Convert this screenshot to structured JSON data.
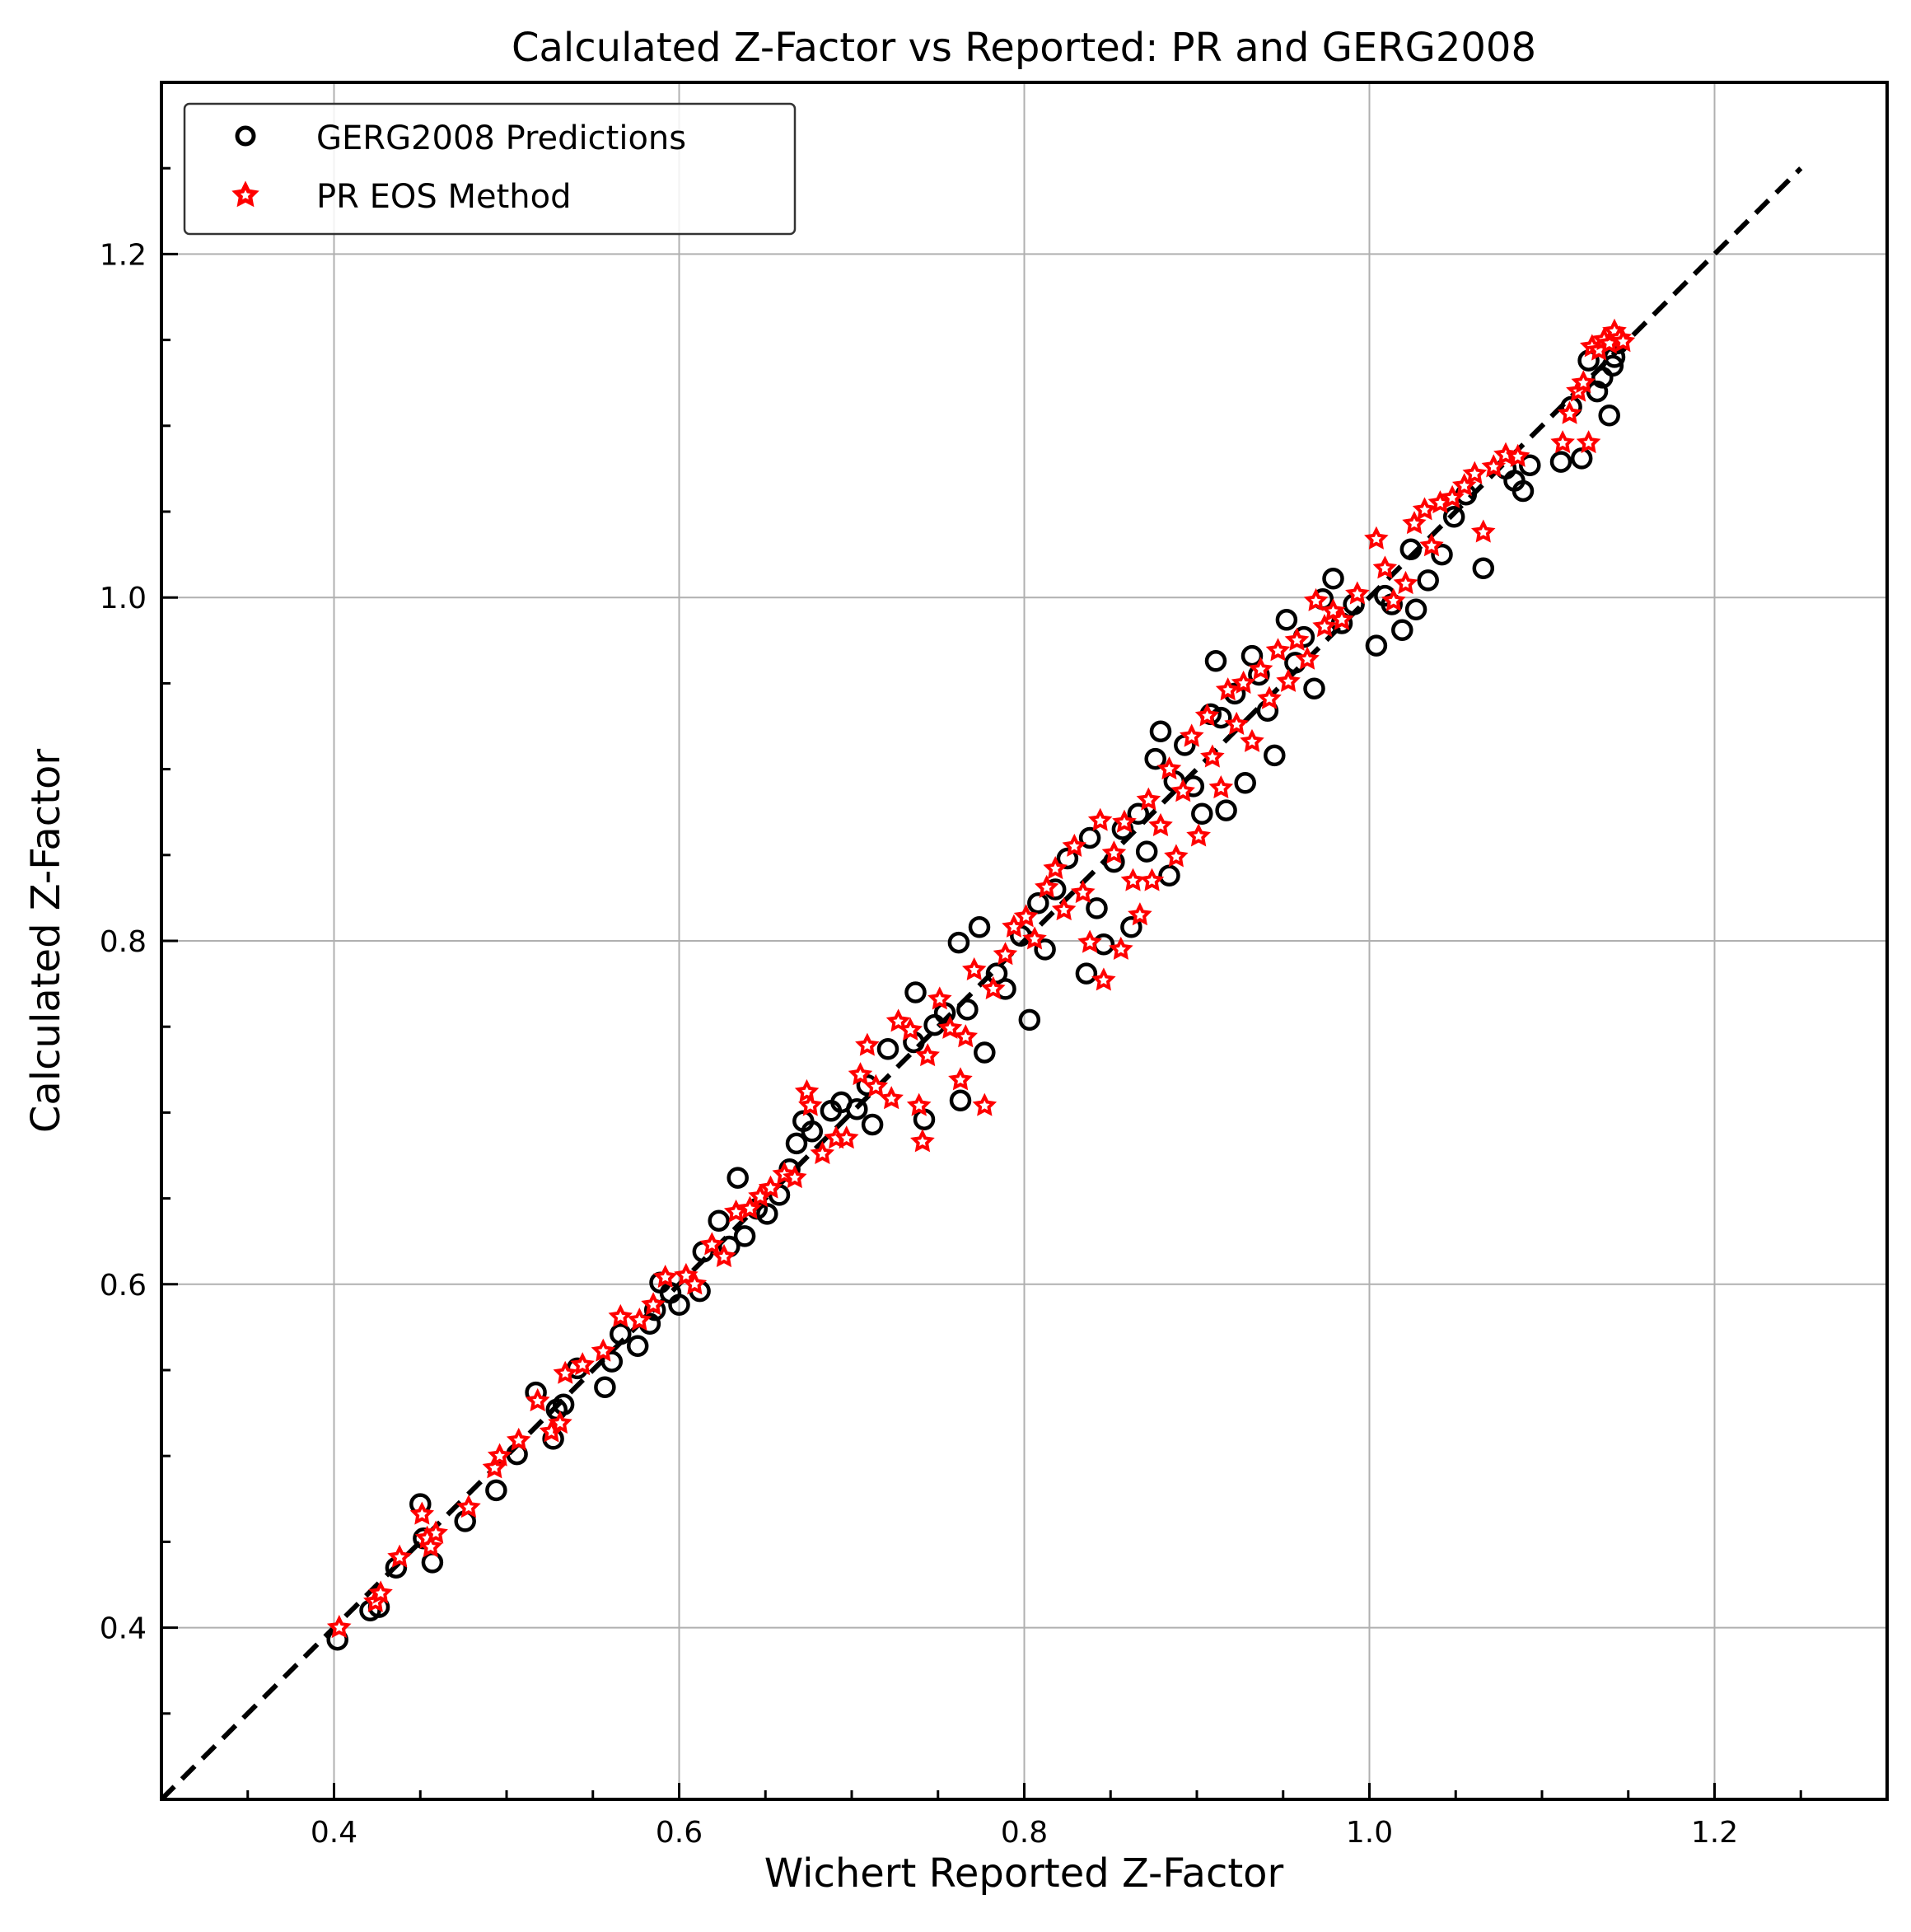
{
  "chart_data": {
    "type": "scatter",
    "title": "Calculated Z-Factor vs Reported: PR and GERG2008",
    "xlabel": "Wichert Reported Z-Factor",
    "ylabel": "Calculated Z-Factor",
    "xlim": [
      0.3,
      1.3
    ],
    "ylim": [
      0.3,
      1.3
    ],
    "xticks": [
      "0.4",
      "0.6",
      "0.8",
      "1.0",
      "1.2"
    ],
    "yticks": [
      "0.4",
      "0.6",
      "0.8",
      "1.0",
      "1.2"
    ],
    "xtick_values": [
      0.4,
      0.6,
      0.8,
      1.0,
      1.2
    ],
    "ytick_values": [
      0.4,
      0.6,
      0.8,
      1.0,
      1.2
    ],
    "minor_step": 0.05,
    "grid": true,
    "legend_position": "top-left",
    "reference_line": {
      "style": "dashed",
      "color": "#000000",
      "x": [
        0.3,
        1.25
      ],
      "y": [
        0.3,
        1.25
      ]
    },
    "series": [
      {
        "name": "GERG2008 Predictions",
        "marker": "open-circle",
        "color": "#000000",
        "points": [
          [
            0.402,
            0.393
          ],
          [
            0.421,
            0.41
          ],
          [
            0.426,
            0.412
          ],
          [
            0.436,
            0.435
          ],
          [
            0.45,
            0.472
          ],
          [
            0.452,
            0.452
          ],
          [
            0.457,
            0.438
          ],
          [
            0.476,
            0.462
          ],
          [
            0.494,
            0.48
          ],
          [
            0.506,
            0.501
          ],
          [
            0.517,
            0.537
          ],
          [
            0.527,
            0.51
          ],
          [
            0.529,
            0.527
          ],
          [
            0.533,
            0.53
          ],
          [
            0.541,
            0.551
          ],
          [
            0.557,
            0.54
          ],
          [
            0.561,
            0.555
          ],
          [
            0.566,
            0.571
          ],
          [
            0.576,
            0.564
          ],
          [
            0.583,
            0.577
          ],
          [
            0.586,
            0.585
          ],
          [
            0.589,
            0.601
          ],
          [
            0.595,
            0.595
          ],
          [
            0.6,
            0.588
          ],
          [
            0.612,
            0.596
          ],
          [
            0.614,
            0.619
          ],
          [
            0.623,
            0.637
          ],
          [
            0.629,
            0.622
          ],
          [
            0.634,
            0.662
          ],
          [
            0.638,
            0.628
          ],
          [
            0.645,
            0.644
          ],
          [
            0.651,
            0.641
          ],
          [
            0.658,
            0.652
          ],
          [
            0.664,
            0.667
          ],
          [
            0.668,
            0.682
          ],
          [
            0.672,
            0.695
          ],
          [
            0.677,
            0.689
          ],
          [
            0.688,
            0.701
          ],
          [
            0.694,
            0.706
          ],
          [
            0.703,
            0.702
          ],
          [
            0.709,
            0.716
          ],
          [
            0.712,
            0.693
          ],
          [
            0.721,
            0.737
          ],
          [
            0.736,
            0.741
          ],
          [
            0.737,
            0.77
          ],
          [
            0.742,
            0.696
          ],
          [
            0.748,
            0.751
          ],
          [
            0.754,
            0.758
          ],
          [
            0.762,
            0.799
          ],
          [
            0.763,
            0.707
          ],
          [
            0.767,
            0.76
          ],
          [
            0.774,
            0.808
          ],
          [
            0.777,
            0.735
          ],
          [
            0.784,
            0.781
          ],
          [
            0.789,
            0.772
          ],
          [
            0.798,
            0.803
          ],
          [
            0.803,
            0.754
          ],
          [
            0.808,
            0.822
          ],
          [
            0.812,
            0.795
          ],
          [
            0.818,
            0.83
          ],
          [
            0.825,
            0.848
          ],
          [
            0.836,
            0.781
          ],
          [
            0.838,
            0.86
          ],
          [
            0.842,
            0.819
          ],
          [
            0.846,
            0.798
          ],
          [
            0.852,
            0.846
          ],
          [
            0.857,
            0.865
          ],
          [
            0.862,
            0.808
          ],
          [
            0.866,
            0.874
          ],
          [
            0.871,
            0.852
          ],
          [
            0.876,
            0.906
          ],
          [
            0.879,
            0.922
          ],
          [
            0.884,
            0.838
          ],
          [
            0.887,
            0.893
          ],
          [
            0.893,
            0.914
          ],
          [
            0.898,
            0.89
          ],
          [
            0.903,
            0.874
          ],
          [
            0.908,
            0.932
          ],
          [
            0.911,
            0.963
          ],
          [
            0.914,
            0.93
          ],
          [
            0.917,
            0.876
          ],
          [
            0.922,
            0.944
          ],
          [
            0.928,
            0.892
          ],
          [
            0.932,
            0.966
          ],
          [
            0.936,
            0.955
          ],
          [
            0.941,
            0.934
          ],
          [
            0.945,
            0.908
          ],
          [
            0.952,
            0.987
          ],
          [
            0.957,
            0.962
          ],
          [
            0.962,
            0.977
          ],
          [
            0.968,
            0.947
          ],
          [
            0.973,
            0.999
          ],
          [
            0.979,
            1.011
          ],
          [
            0.984,
            0.985
          ],
          [
            0.991,
            0.996
          ],
          [
            1.004,
            0.972
          ],
          [
            1.009,
            1.001
          ],
          [
            1.013,
            0.996
          ],
          [
            1.019,
            0.981
          ],
          [
            1.024,
            1.028
          ],
          [
            1.027,
            0.993
          ],
          [
            1.034,
            1.01
          ],
          [
            1.042,
            1.025
          ],
          [
            1.049,
            1.047
          ],
          [
            1.056,
            1.06
          ],
          [
            1.066,
            1.017
          ],
          [
            1.079,
            1.075
          ],
          [
            1.084,
            1.068
          ],
          [
            1.089,
            1.062
          ],
          [
            1.093,
            1.077
          ],
          [
            1.111,
            1.079
          ],
          [
            1.117,
            1.111
          ],
          [
            1.123,
            1.081
          ],
          [
            1.127,
            1.138
          ],
          [
            1.132,
            1.12
          ],
          [
            1.135,
            1.128
          ],
          [
            1.139,
            1.106
          ],
          [
            1.141,
            1.135
          ],
          [
            1.142,
            1.14
          ],
          [
            1.144,
            1.148
          ]
        ]
      },
      {
        "name": "PR EOS Method",
        "marker": "star",
        "color": "#ff0000",
        "points": [
          [
            0.403,
            0.4
          ],
          [
            0.424,
            0.415
          ],
          [
            0.427,
            0.42
          ],
          [
            0.438,
            0.441
          ],
          [
            0.451,
            0.466
          ],
          [
            0.454,
            0.452
          ],
          [
            0.456,
            0.447
          ],
          [
            0.459,
            0.455
          ],
          [
            0.478,
            0.47
          ],
          [
            0.493,
            0.493
          ],
          [
            0.496,
            0.5
          ],
          [
            0.507,
            0.509
          ],
          [
            0.518,
            0.532
          ],
          [
            0.526,
            0.514
          ],
          [
            0.531,
            0.519
          ],
          [
            0.534,
            0.548
          ],
          [
            0.544,
            0.553
          ],
          [
            0.556,
            0.561
          ],
          [
            0.566,
            0.581
          ],
          [
            0.577,
            0.579
          ],
          [
            0.585,
            0.588
          ],
          [
            0.592,
            0.604
          ],
          [
            0.604,
            0.605
          ],
          [
            0.609,
            0.6
          ],
          [
            0.619,
            0.623
          ],
          [
            0.626,
            0.616
          ],
          [
            0.633,
            0.642
          ],
          [
            0.641,
            0.644
          ],
          [
            0.647,
            0.651
          ],
          [
            0.653,
            0.656
          ],
          [
            0.661,
            0.664
          ],
          [
            0.667,
            0.662
          ],
          [
            0.674,
            0.712
          ],
          [
            0.676,
            0.704
          ],
          [
            0.683,
            0.676
          ],
          [
            0.691,
            0.685
          ],
          [
            0.697,
            0.685
          ],
          [
            0.705,
            0.722
          ],
          [
            0.709,
            0.739
          ],
          [
            0.714,
            0.715
          ],
          [
            0.723,
            0.708
          ],
          [
            0.727,
            0.753
          ],
          [
            0.734,
            0.748
          ],
          [
            0.739,
            0.704
          ],
          [
            0.741,
            0.683
          ],
          [
            0.744,
            0.733
          ],
          [
            0.751,
            0.766
          ],
          [
            0.757,
            0.749
          ],
          [
            0.763,
            0.719
          ],
          [
            0.766,
            0.744
          ],
          [
            0.771,
            0.783
          ],
          [
            0.777,
            0.704
          ],
          [
            0.782,
            0.772
          ],
          [
            0.789,
            0.792
          ],
          [
            0.794,
            0.808
          ],
          [
            0.801,
            0.814
          ],
          [
            0.806,
            0.801
          ],
          [
            0.813,
            0.831
          ],
          [
            0.818,
            0.842
          ],
          [
            0.823,
            0.818
          ],
          [
            0.829,
            0.855
          ],
          [
            0.834,
            0.828
          ],
          [
            0.838,
            0.799
          ],
          [
            0.844,
            0.87
          ],
          [
            0.846,
            0.777
          ],
          [
            0.852,
            0.851
          ],
          [
            0.856,
            0.795
          ],
          [
            0.858,
            0.869
          ],
          [
            0.863,
            0.835
          ],
          [
            0.867,
            0.815
          ],
          [
            0.872,
            0.882
          ],
          [
            0.874,
            0.835
          ],
          [
            0.879,
            0.867
          ],
          [
            0.884,
            0.9
          ],
          [
            0.888,
            0.849
          ],
          [
            0.892,
            0.887
          ],
          [
            0.897,
            0.919
          ],
          [
            0.901,
            0.861
          ],
          [
            0.906,
            0.931
          ],
          [
            0.909,
            0.907
          ],
          [
            0.914,
            0.889
          ],
          [
            0.918,
            0.946
          ],
          [
            0.923,
            0.926
          ],
          [
            0.927,
            0.95
          ],
          [
            0.932,
            0.916
          ],
          [
            0.937,
            0.958
          ],
          [
            0.942,
            0.941
          ],
          [
            0.947,
            0.969
          ],
          [
            0.953,
            0.951
          ],
          [
            0.958,
            0.975
          ],
          [
            0.964,
            0.964
          ],
          [
            0.969,
            0.998
          ],
          [
            0.974,
            0.983
          ],
          [
            0.979,
            0.992
          ],
          [
            0.984,
            0.987
          ],
          [
            0.993,
            1.002
          ],
          [
            1.004,
            1.034
          ],
          [
            1.009,
            1.017
          ],
          [
            1.014,
            0.998
          ],
          [
            1.021,
            1.008
          ],
          [
            1.026,
            1.043
          ],
          [
            1.032,
            1.051
          ],
          [
            1.036,
            1.03
          ],
          [
            1.041,
            1.055
          ],
          [
            1.048,
            1.058
          ],
          [
            1.055,
            1.065
          ],
          [
            1.061,
            1.072
          ],
          [
            1.066,
            1.038
          ],
          [
            1.072,
            1.076
          ],
          [
            1.079,
            1.083
          ],
          [
            1.086,
            1.082
          ],
          [
            1.112,
            1.09
          ],
          [
            1.116,
            1.107
          ],
          [
            1.121,
            1.12
          ],
          [
            1.124,
            1.125
          ],
          [
            1.127,
            1.09
          ],
          [
            1.129,
            1.146
          ],
          [
            1.133,
            1.144
          ],
          [
            1.136,
            1.15
          ],
          [
            1.139,
            1.148
          ],
          [
            1.142,
            1.155
          ],
          [
            1.145,
            1.151
          ],
          [
            1.147,
            1.149
          ]
        ]
      }
    ]
  }
}
